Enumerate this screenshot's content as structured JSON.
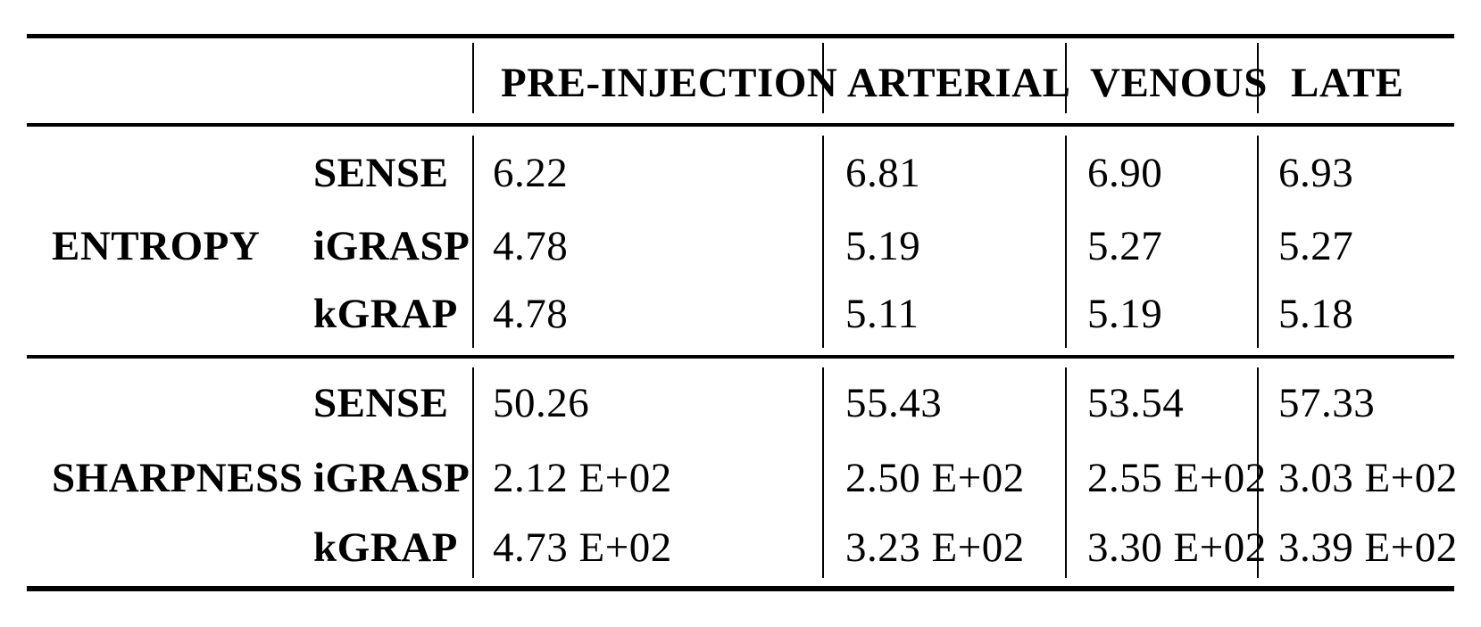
{
  "table": {
    "columns": [
      "PRE-INJECTION",
      "ARTERIAL",
      "VENOUS",
      "LATE"
    ],
    "sections": [
      {
        "metric": "ENTROPY",
        "rows": [
          {
            "method": "SENSE",
            "values": [
              "6.22",
              "6.81",
              "6.90",
              "6.93"
            ]
          },
          {
            "method": "iGRASP",
            "values": [
              "4.78",
              "5.19",
              "5.27",
              "5.27"
            ]
          },
          {
            "method": "kGRAP",
            "values": [
              "4.78",
              "5.11",
              "5.19",
              "5.18"
            ]
          }
        ]
      },
      {
        "metric": "SHARPNESS",
        "rows": [
          {
            "method": "SENSE",
            "values": [
              "50.26",
              "55.43",
              "53.54",
              "57.33"
            ]
          },
          {
            "method": "iGRASP",
            "values": [
              "2.12 E+02",
              "2.50 E+02",
              "2.55 E+02",
              "3.03 E+02"
            ]
          },
          {
            "method": "kGRAP",
            "values": [
              "4.73 E+02",
              "3.23 E+02",
              "3.30 E+02",
              "3.39 E+02"
            ]
          }
        ]
      }
    ]
  },
  "colors": {
    "background": "#ffffff",
    "text": "#000000",
    "rule": "#000000"
  }
}
